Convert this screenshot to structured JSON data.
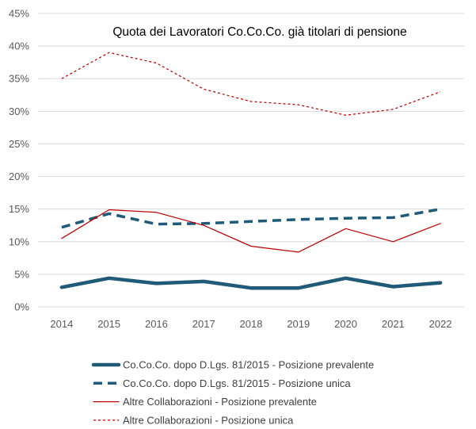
{
  "chart_data": {
    "type": "line",
    "title": "Quota dei Lavoratori Co.Co.Co. già titolari di pensione",
    "xlabel": "",
    "ylabel": "",
    "categories": [
      "2014",
      "2015",
      "2016",
      "2017",
      "2018",
      "2019",
      "2020",
      "2021",
      "2022"
    ],
    "ylim": [
      0,
      45
    ],
    "yticks": [
      "0%",
      "5%",
      "10%",
      "15%",
      "20%",
      "25%",
      "30%",
      "35%",
      "40%",
      "45%"
    ],
    "grid": true,
    "legend_position": "bottom",
    "series": [
      {
        "name": "Co.Co.Co. dopo D.Lgs. 81/2015 - Posizione prevalente",
        "color": "#1f5a78",
        "style": "thick-solid",
        "values": [
          3.0,
          4.4,
          3.6,
          3.9,
          2.9,
          2.9,
          4.4,
          3.1,
          3.7
        ]
      },
      {
        "name": "Co.Co.Co. dopo D.Lgs. 81/2015 - Posizione unica",
        "color": "#1f5a78",
        "style": "thick-dashed",
        "values": [
          12.2,
          14.3,
          12.7,
          12.8,
          13.1,
          13.4,
          13.6,
          13.7,
          15.0
        ]
      },
      {
        "name": "Altre Collaborazioni - Posizione prevalente",
        "color": "#c00000",
        "style": "thin-solid",
        "values": [
          10.5,
          14.9,
          14.5,
          12.5,
          9.3,
          8.4,
          12.0,
          10.0,
          12.8
        ]
      },
      {
        "name": "Altre Collaborazioni - Posizione unica",
        "color": "#c00000",
        "style": "thin-dashed",
        "values": [
          35.0,
          39.0,
          37.4,
          33.4,
          31.5,
          31.0,
          29.4,
          30.3,
          33.0
        ]
      }
    ]
  }
}
